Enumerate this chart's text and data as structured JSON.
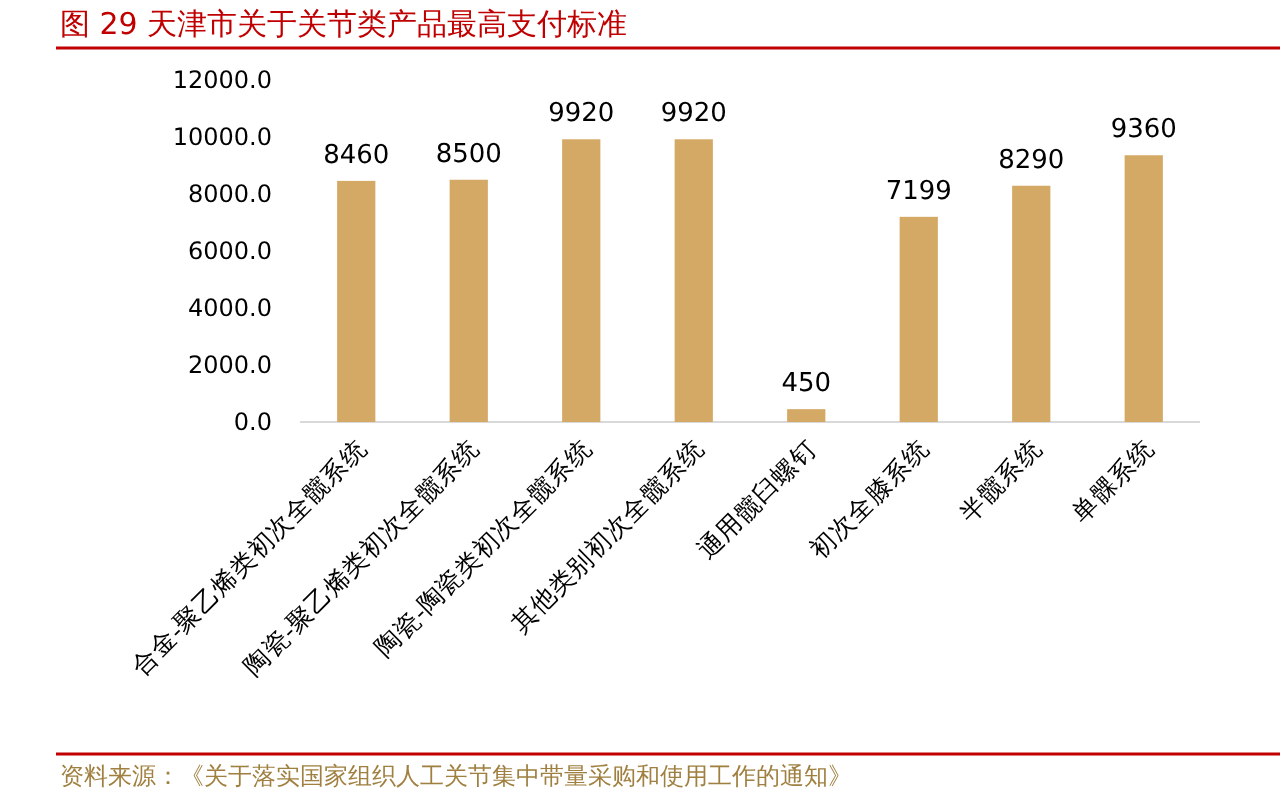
{
  "chart_data": {
    "type": "bar",
    "title": "图 29 天津市关于关节类产品最高支付标准",
    "categories": [
      "合金-聚乙烯类初次全髋系统",
      "陶瓷-聚乙烯类初次全髋系统",
      "陶瓷-陶瓷类初次全髋系统",
      "其他类别初次全髋系统",
      "通用髋臼螺钉",
      "初次全膝系统",
      "半髋系统",
      "单髁系统"
    ],
    "values": [
      8460,
      8500,
      9920,
      9920,
      450,
      7199,
      8290,
      9360
    ],
    "color": "#d4a965",
    "ylim": [
      0,
      12000
    ],
    "yticks": [
      {
        "value": 0,
        "label": "0.0"
      },
      {
        "value": 2000,
        "label": "2000.0"
      },
      {
        "value": 4000,
        "label": "4000.0"
      },
      {
        "value": 6000,
        "label": "6000.0"
      },
      {
        "value": 8000,
        "label": "8000.0"
      },
      {
        "value": 10000,
        "label": "10000.0"
      },
      {
        "value": 12000,
        "label": "12000.0"
      }
    ],
    "data_labels": true,
    "grid": false,
    "annotations": [
      "资料来源：《关于落实国家组织人工关节集中带量采购和使用工作的通知》"
    ]
  }
}
